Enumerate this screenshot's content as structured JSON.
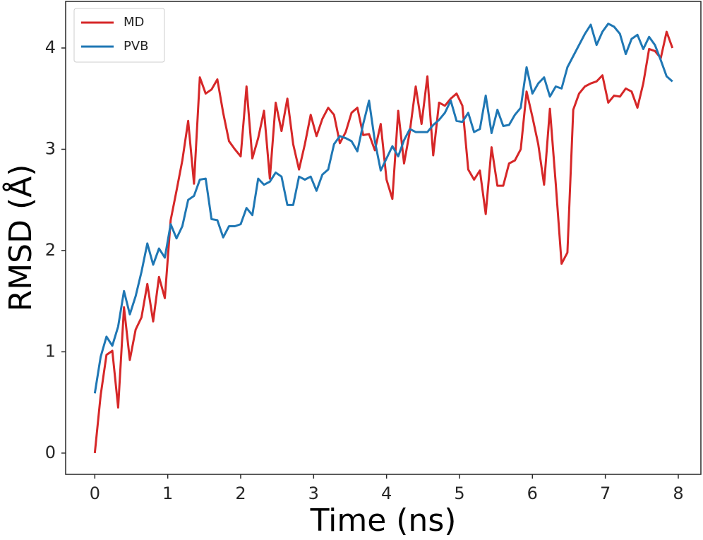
{
  "chart_data": {
    "type": "line",
    "xlabel": "Time (ns)",
    "ylabel": "RMSD (Å)",
    "x": [
      0,
      0.08,
      0.16,
      0.24,
      0.32,
      0.4,
      0.48,
      0.56,
      0.64,
      0.72,
      0.8,
      0.88,
      0.96,
      1.04,
      1.12,
      1.2,
      1.28,
      1.36,
      1.44,
      1.52,
      1.6,
      1.68,
      1.76,
      1.84,
      1.92,
      2,
      2.08,
      2.16,
      2.24,
      2.32,
      2.4,
      2.48,
      2.56,
      2.64,
      2.72,
      2.8,
      2.88,
      2.96,
      3.04,
      3.12,
      3.2,
      3.28,
      3.36,
      3.44,
      3.52,
      3.6,
      3.68,
      3.76,
      3.84,
      3.92,
      4,
      4.08,
      4.16,
      4.24,
      4.32,
      4.4,
      4.48,
      4.56,
      4.64,
      4.72,
      4.8,
      4.88,
      4.96,
      5.04,
      5.12,
      5.2,
      5.28,
      5.36,
      5.44,
      5.52,
      5.6,
      5.68,
      5.76,
      5.84,
      5.92,
      6,
      6.08,
      6.16,
      6.24,
      6.32,
      6.4,
      6.48,
      6.56,
      6.64,
      6.72,
      6.8,
      6.88,
      6.96,
      7.04,
      7.12,
      7.2,
      7.28,
      7.36,
      7.44,
      7.52,
      7.6,
      7.68,
      7.76,
      7.84,
      7.92
    ],
    "series": [
      {
        "name": "MD",
        "color": "#d62728",
        "values": [
          0,
          0.57,
          0.97,
          1.01,
          0.45,
          1.44,
          0.92,
          1.22,
          1.34,
          1.67,
          1.3,
          1.74,
          1.53,
          2.3,
          2.59,
          2.89,
          3.28,
          2.66,
          3.71,
          3.55,
          3.59,
          3.69,
          3.36,
          3.08,
          3.0,
          2.93,
          3.62,
          2.91,
          3.11,
          3.38,
          2.71,
          3.46,
          3.18,
          3.5,
          3.05,
          2.8,
          3.05,
          3.34,
          3.13,
          3.3,
          3.41,
          3.34,
          3.06,
          3.17,
          3.36,
          3.41,
          3.14,
          3.15,
          2.99,
          3.25,
          2.7,
          2.51,
          3.38,
          2.86,
          3.18,
          3.62,
          3.25,
          3.72,
          2.94,
          3.46,
          3.43,
          3.5,
          3.55,
          3.43,
          2.8,
          2.7,
          2.79,
          2.36,
          3.02,
          2.64,
          2.64,
          2.86,
          2.89,
          3.0,
          3.57,
          3.32,
          3.05,
          2.65,
          3.4,
          2.66,
          1.87,
          1.98,
          3.39,
          3.55,
          3.62,
          3.65,
          3.67,
          3.73,
          3.46,
          3.53,
          3.52,
          3.6,
          3.57,
          3.41,
          3.65,
          3.99,
          3.97,
          3.9,
          4.16,
          4.0
        ]
      },
      {
        "name": "PVB",
        "color": "#1f77b4",
        "values": [
          0.59,
          0.95,
          1.15,
          1.06,
          1.25,
          1.6,
          1.37,
          1.55,
          1.79,
          2.07,
          1.86,
          2.02,
          1.93,
          2.26,
          2.12,
          2.24,
          2.5,
          2.54,
          2.7,
          2.71,
          2.31,
          2.3,
          2.13,
          2.24,
          2.24,
          2.26,
          2.42,
          2.35,
          2.71,
          2.65,
          2.68,
          2.77,
          2.73,
          2.45,
          2.45,
          2.73,
          2.7,
          2.73,
          2.59,
          2.75,
          2.8,
          3.05,
          3.13,
          3.11,
          3.08,
          2.98,
          3.25,
          3.48,
          3.08,
          2.79,
          2.91,
          3.03,
          2.93,
          3.09,
          3.2,
          3.17,
          3.17,
          3.17,
          3.24,
          3.29,
          3.36,
          3.48,
          3.28,
          3.27,
          3.36,
          3.17,
          3.2,
          3.53,
          3.16,
          3.39,
          3.23,
          3.24,
          3.34,
          3.41,
          3.81,
          3.55,
          3.65,
          3.71,
          3.52,
          3.62,
          3.6,
          3.81,
          3.92,
          4.03,
          4.14,
          4.23,
          4.03,
          4.16,
          4.24,
          4.21,
          4.14,
          3.94,
          4.09,
          4.13,
          3.99,
          4.11,
          4.03,
          3.88,
          3.72,
          3.67
        ]
      }
    ],
    "xlim": [
      -0.4,
      8.31
    ],
    "ylim": [
      -0.21,
      4.46
    ],
    "xticks": [
      0,
      1,
      2,
      3,
      4,
      5,
      6,
      7,
      8
    ],
    "yticks": [
      0,
      1,
      2,
      3,
      4
    ],
    "grid": false,
    "legend": "upper left"
  }
}
